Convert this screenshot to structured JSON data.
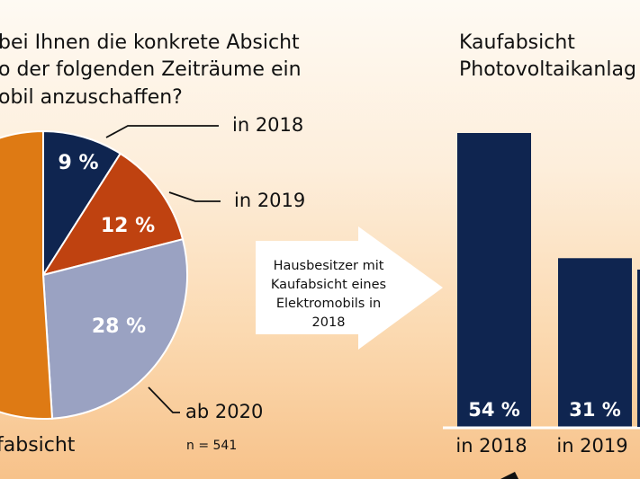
{
  "question": {
    "lines": [
      "bei Ihnen die konkrete Absicht",
      "o der folgenden Zeiträume ein",
      "obil anzuschaffen?"
    ]
  },
  "arrow_text": {
    "lines": [
      "Hausbesitzer mit",
      "Kaufabsicht eines",
      "Elektromobils in",
      "2018"
    ]
  },
  "right_title": {
    "lines": [
      "Kaufabsicht",
      "Photovoltaikanlag"
    ]
  },
  "footnote": "n = 541",
  "left_bottom_label": "fabsicht",
  "colors": {
    "orange": "#de7a14",
    "navy": "#0f2550",
    "rust": "#bf4210",
    "lavender": "#9aa2c2"
  },
  "chart_data": [
    {
      "type": "pie",
      "slices": [
        {
          "label": "in 2018",
          "value": 9,
          "value_label": "9 %",
          "color": "#0f2550"
        },
        {
          "label": "in 2019",
          "value": 12,
          "value_label": "12 %",
          "color": "#bf4210"
        },
        {
          "label": "ab 2020",
          "value": 28,
          "value_label": "28 %",
          "color": "#9aa2c2"
        },
        {
          "label": "",
          "value": 51,
          "value_label": "",
          "color": "#de7a14"
        }
      ]
    },
    {
      "type": "bar",
      "title": "Kaufabsicht Photovoltaikanlag",
      "categories": [
        "in 2018",
        "in 2019"
      ],
      "values": [
        54,
        31
      ],
      "value_labels": [
        "54 %",
        "31 %"
      ],
      "ylim": [
        0,
        60
      ],
      "color": "#0f2550"
    }
  ]
}
